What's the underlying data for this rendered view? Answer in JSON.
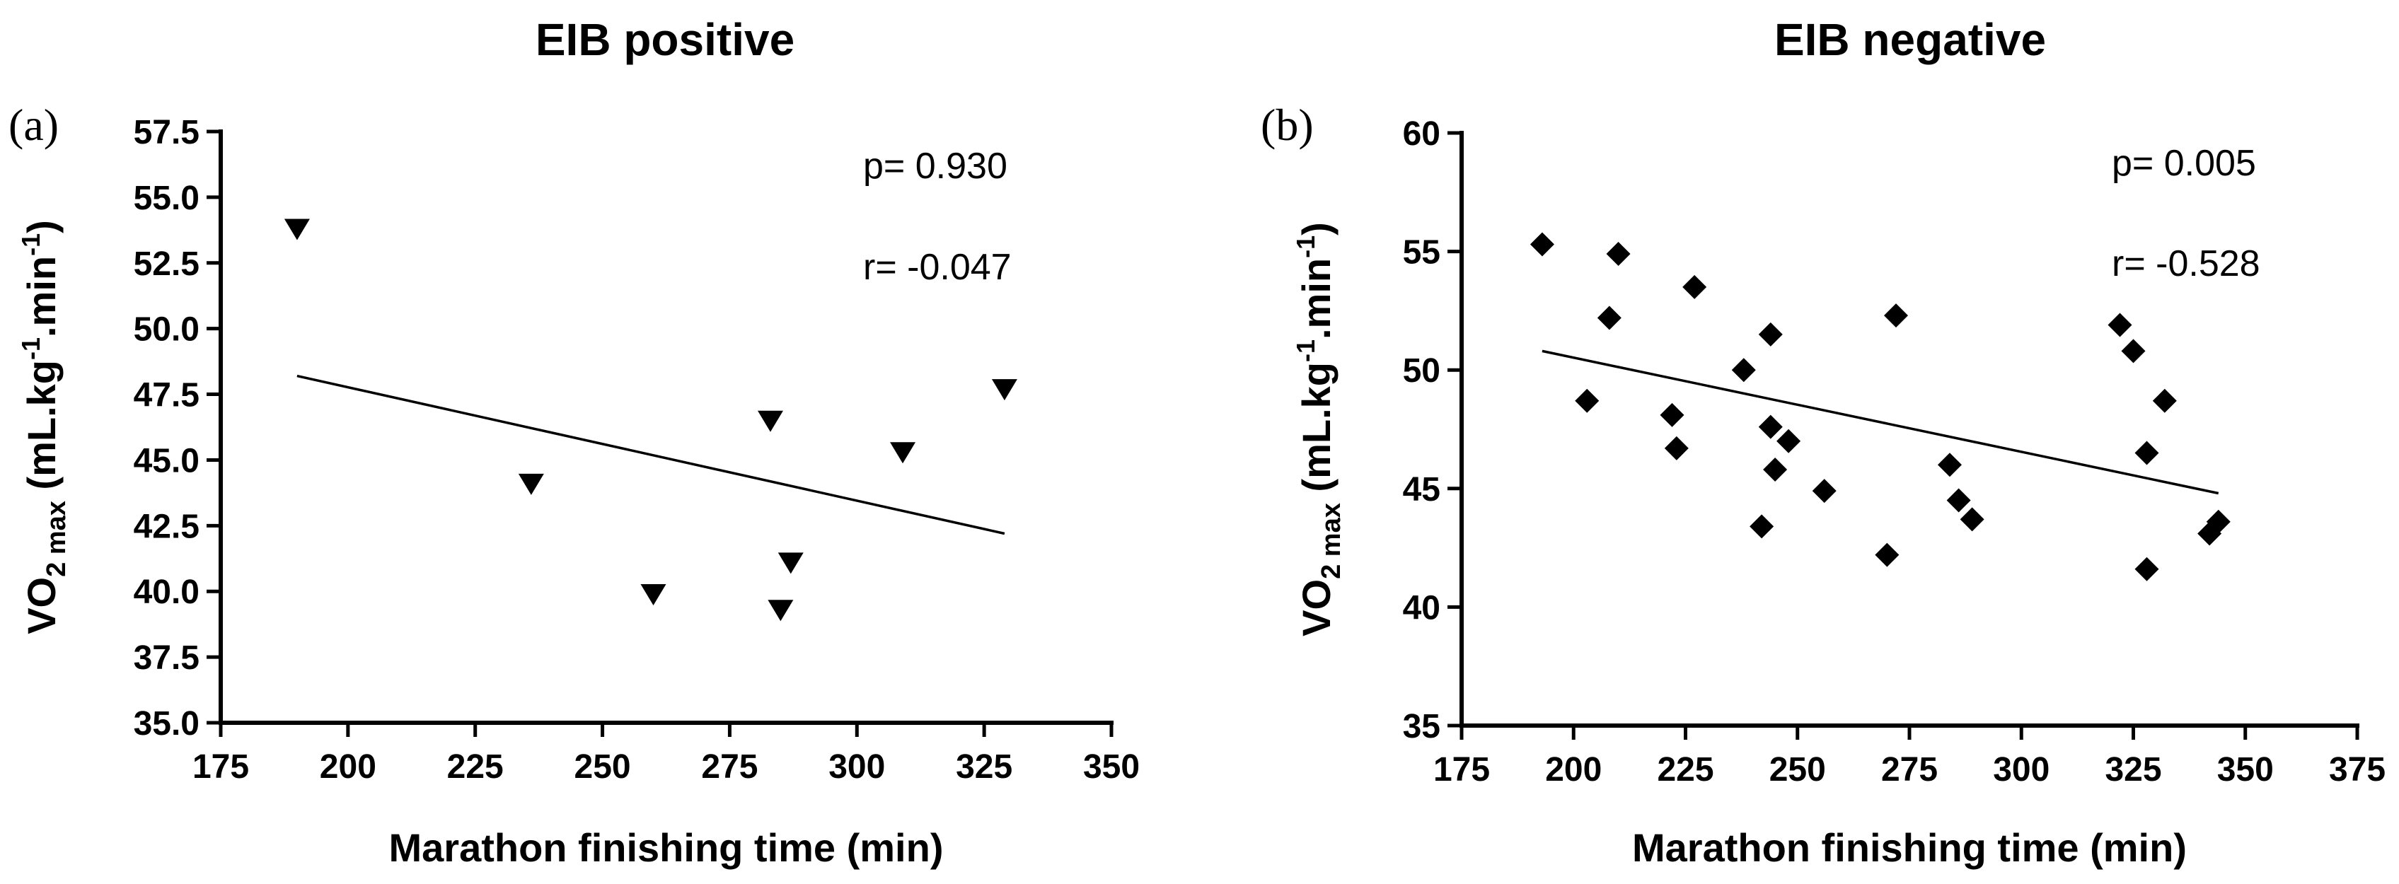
{
  "chart_data": [
    {
      "type": "scatter",
      "panel_label": "(a)",
      "title": "EIB positive",
      "xlabel": "Marathon finishing time (min)",
      "ylabel": {
        "main": "VO",
        "sub": "2 max",
        "units": " (mL.kg",
        "exp1": "-1",
        "mid": ".min",
        "exp2": "-1",
        "end": ")"
      },
      "xlim": [
        175,
        350
      ],
      "ylim": [
        35.0,
        57.5
      ],
      "xticks": [
        175,
        200,
        225,
        250,
        275,
        300,
        325,
        350
      ],
      "xtick_labels": [
        "175",
        "200",
        "225",
        "250",
        "275",
        "300",
        "325",
        "350"
      ],
      "yticks": [
        35.0,
        37.5,
        40.0,
        42.5,
        45.0,
        47.5,
        50.0,
        52.5,
        55.0,
        57.5
      ],
      "ytick_labels": [
        "35.0",
        "37.5",
        "40.0",
        "42.5",
        "45.0",
        "47.5",
        "50.0",
        "52.5",
        "55.0",
        "57.5"
      ],
      "marker": "triangle-down",
      "x": [
        190,
        236,
        260,
        283,
        285,
        287,
        309,
        329
      ],
      "y": [
        53.8,
        44.1,
        39.9,
        46.5,
        39.3,
        41.1,
        45.3,
        47.7
      ],
      "regression": {
        "x": [
          190,
          329
        ],
        "y": [
          48.2,
          42.2
        ]
      },
      "stats": {
        "p": "p= 0.930",
        "r": "r= -0.047"
      }
    },
    {
      "type": "scatter",
      "panel_label": "(b)",
      "title": "EIB negative",
      "xlabel": "Marathon finishing time (min)",
      "ylabel": {
        "main": "VO",
        "sub": "2 max",
        "units": " (mL.kg",
        "exp1": "-1",
        "mid": ".min",
        "exp2": "-1",
        "end": ")"
      },
      "xlim": [
        175,
        375
      ],
      "ylim": [
        35,
        60
      ],
      "xticks": [
        175,
        200,
        225,
        250,
        275,
        300,
        325,
        350,
        375
      ],
      "xtick_labels": [
        "175",
        "200",
        "225",
        "250",
        "275",
        "300",
        "325",
        "350",
        "375"
      ],
      "yticks": [
        35,
        40,
        45,
        50,
        55,
        60
      ],
      "ytick_labels": [
        "35",
        "40",
        "45",
        "50",
        "55",
        "60"
      ],
      "marker": "diamond",
      "x": [
        193,
        203,
        208,
        210,
        222,
        223,
        227,
        238,
        242,
        244,
        244,
        245,
        248,
        256,
        270,
        272,
        284,
        286,
        289,
        322,
        325,
        328,
        328,
        332,
        342,
        344
      ],
      "y": [
        55.3,
        48.7,
        52.2,
        54.9,
        48.1,
        46.7,
        53.5,
        50.0,
        43.4,
        51.5,
        47.6,
        45.8,
        47.0,
        44.9,
        42.2,
        52.3,
        46.0,
        44.5,
        43.7,
        51.9,
        50.8,
        41.6,
        46.5,
        48.7,
        43.1,
        43.6
      ],
      "regression": {
        "x": [
          193,
          344
        ],
        "y": [
          50.8,
          44.8
        ]
      },
      "stats": {
        "p": "p= 0.005",
        "r": "r= -0.528"
      }
    }
  ]
}
